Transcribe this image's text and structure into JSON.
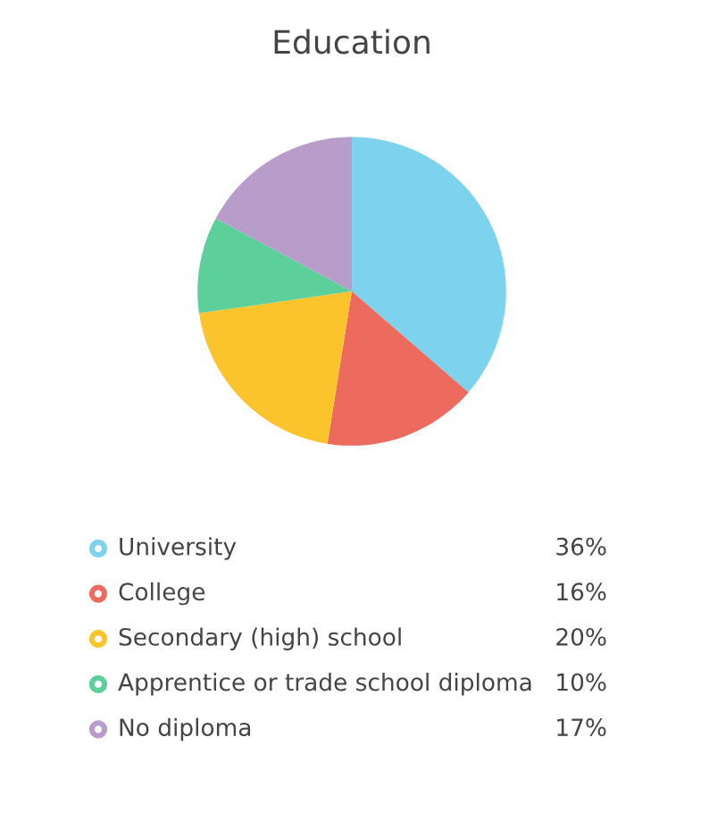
{
  "chart_data": {
    "type": "pie",
    "title": "Education",
    "categories": [
      "University",
      "College",
      "Secondary (high) school",
      "Apprentice or trade school diploma",
      "No diploma"
    ],
    "values": [
      36,
      16,
      20,
      10,
      17
    ],
    "value_labels": [
      "36%",
      "16%",
      "20%",
      "10%",
      "17%"
    ],
    "colors": [
      "#7dd3ee",
      "#ec6a5e",
      "#fcc42c",
      "#5ccf9b",
      "#b89cc9"
    ],
    "legend": "bottom"
  }
}
